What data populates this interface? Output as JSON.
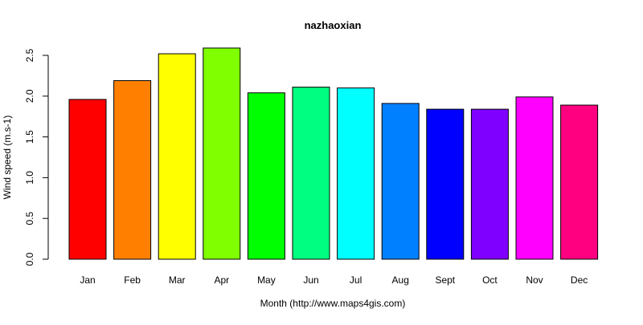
{
  "chart_data": {
    "type": "bar",
    "title": "nazhaoxian",
    "xlabel": "Month (http://www.maps4gis.com)",
    "ylabel": "Wind speed (m.s-1)",
    "categories": [
      "Jan",
      "Feb",
      "Mar",
      "Apr",
      "May",
      "Jun",
      "Jul",
      "Aug",
      "Sept",
      "Oct",
      "Nov",
      "Dec"
    ],
    "values": [
      1.96,
      2.19,
      2.52,
      2.59,
      2.04,
      2.11,
      2.1,
      1.91,
      1.84,
      1.84,
      1.99,
      1.89
    ],
    "colors": [
      "#ff0000",
      "#ff8000",
      "#ffff00",
      "#80ff00",
      "#00ff00",
      "#00ff80",
      "#00ffff",
      "#0080ff",
      "#0000ff",
      "#8000ff",
      "#ff00ff",
      "#ff0080"
    ],
    "yticks": [
      0.0,
      0.5,
      1.0,
      1.5,
      2.0,
      2.5
    ],
    "ytick_labels": [
      "0.0",
      "0.5",
      "1.0",
      "1.5",
      "2.0",
      "2.5"
    ],
    "ylim": [
      0,
      2.6
    ],
    "grid": false,
    "legend": "none"
  }
}
